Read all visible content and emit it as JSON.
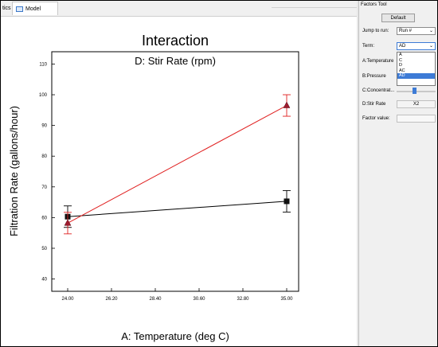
{
  "tabs": [
    {
      "label": "tics"
    },
    {
      "label": "Model Graphs"
    }
  ],
  "chart_data": {
    "type": "line",
    "title": "Interaction",
    "subtitle": "D: Stir Rate (rpm)",
    "xlabel": "A: Temperature (deg C)",
    "ylabel": "Filtration Rate (gallons/hour)",
    "xlim": [
      23.2,
      35.6
    ],
    "ylim": [
      36,
      114
    ],
    "xticks": [
      "24.00",
      "26.20",
      "28.40",
      "30.60",
      "32.80",
      "35.00"
    ],
    "yticks": [
      "40",
      "50",
      "60",
      "70",
      "80",
      "90",
      "100",
      "110"
    ],
    "grid": false,
    "series": [
      {
        "x": [
          24,
          35
        ],
        "y": [
          60.3,
          65.3
        ],
        "err": [
          3.5,
          3.5
        ],
        "color": "#000000",
        "marker": "square"
      },
      {
        "x": [
          24,
          35
        ],
        "y": [
          58.2,
          96.5
        ],
        "err": [
          3.5,
          3.5
        ],
        "color": "#e02020",
        "marker": "triangle"
      }
    ]
  },
  "factors_tool": {
    "title": "Factors Tool",
    "default_label": "Default",
    "jump_label": "Jump to run:",
    "jump_value": "Run #",
    "term_label": "Term:",
    "term_value": "AD",
    "term_options": [
      "A",
      "C",
      "D",
      "AC",
      "AD"
    ],
    "term_selected": "AD",
    "factors": [
      "A:Temperature",
      "B:Pressure",
      "C:Concentrat...",
      "D:Stir Rate"
    ],
    "stir_value": "X2",
    "factor_value_label": "Factor value:",
    "chevron": "⌄"
  }
}
